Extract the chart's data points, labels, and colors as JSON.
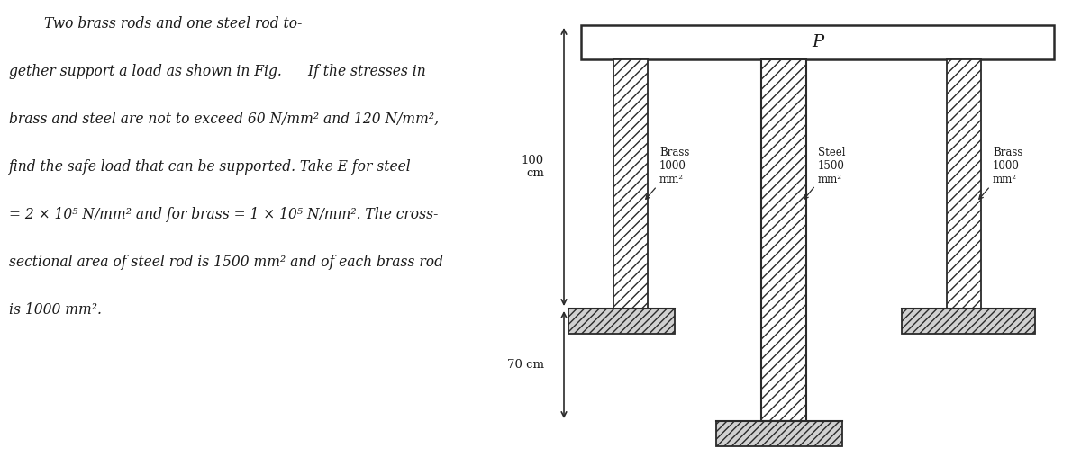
{
  "bg_color": "#ffffff",
  "text_color": "#1a1a1a",
  "fig_width": 12.0,
  "fig_height": 5.18,
  "top_plate_label": "P",
  "dim_100cm": "100\ncm",
  "dim_70cm": "70 cm",
  "brass_label1": "Brass\n1000\nmm²",
  "steel_label": "Steel\n1500\nmm²",
  "brass_label2": "Brass\n1000\nmm²",
  "hatch_pattern": "///",
  "rod_color": "#ffffff",
  "rod_edge_color": "#2a2a2a",
  "plate_color": "#ffffff",
  "plate_edge_color": "#2a2a2a",
  "ground_hatch": "////",
  "ground_fc": "#d0d0d0",
  "problem_lines": [
    [
      "        Two brass rods and one steel rod to-",
      false
    ],
    [
      "gether support a load as shown in Fig.      If the stresses in",
      false
    ],
    [
      "brass and steel are not to exceed 60 N/mm² and 120 N/mm²,",
      false
    ],
    [
      "find the safe load that can be supported. Take E for steel",
      false
    ],
    [
      "= 2 × 10⁵ N/mm² and for brass = 1 × 10⁵ N/mm². The cross-",
      false
    ],
    [
      "sectional area of steel rod is 1500 mm² and of each brass rod",
      false
    ],
    [
      "is 1000 mm².",
      false
    ]
  ]
}
